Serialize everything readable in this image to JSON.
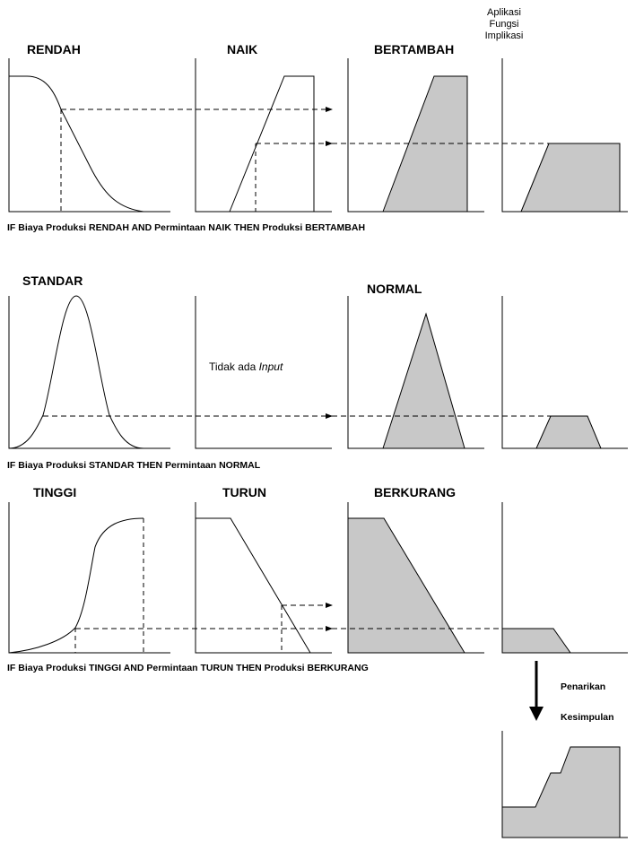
{
  "header": {
    "implication_title": [
      "Aplikasi",
      "Fungsi",
      "Implikasi"
    ]
  },
  "rule1": {
    "labels": [
      "RENDAH",
      "NAIK",
      "BERTAMBAH"
    ],
    "text": "IF Biaya Produksi RENDAH AND Permintaan NAIK THEN Produksi BERTAMBAH"
  },
  "rule2": {
    "labels": [
      "STANDAR",
      "NORMAL"
    ],
    "no_input_prefix": "Tidak ada ",
    "no_input_italic": "Input",
    "text": "IF Biaya Produksi STANDAR THEN Permintaan NORMAL"
  },
  "rule3": {
    "labels": [
      "TINGGI",
      "TURUN",
      "BERKURANG"
    ],
    "text": "IF Biaya Produksi TINGGI AND Permintaan TURUN THEN Produksi BERKURANG"
  },
  "conclusion": {
    "label_line1": "Penarikan",
    "label_line2": "Kesimpulan"
  },
  "colors": {
    "fill": "#c8c8c8",
    "stroke": "#000000"
  }
}
